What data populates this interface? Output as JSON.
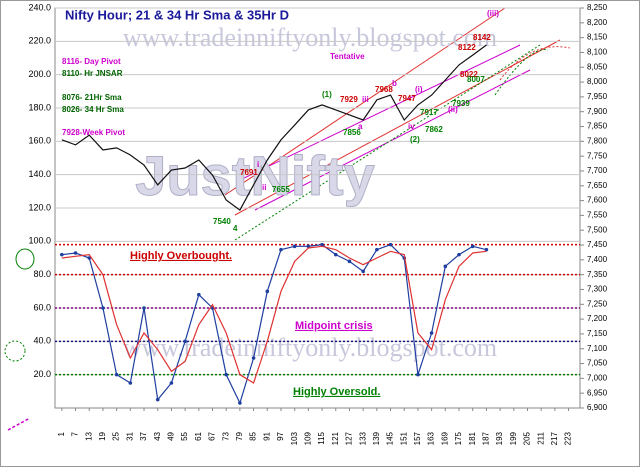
{
  "chart_data": {
    "type": "line",
    "title": "Nifty Hour; 21 & 34 Hr Sma & 35Hr D",
    "watermark": "JustNifty",
    "site": "www.tradeinniftyonly.blogspot.com",
    "xlim": [
      -2,
      228
    ],
    "xticks": [
      1,
      7,
      13,
      19,
      25,
      31,
      37,
      43,
      49,
      55,
      61,
      67,
      73,
      79,
      85,
      91,
      97,
      103,
      109,
      115,
      121,
      127,
      133,
      139,
      145,
      151,
      157,
      163,
      169,
      175,
      181,
      187,
      193,
      199,
      205,
      211,
      217,
      223
    ],
    "ylim": [
      0,
      240
    ],
    "yticks": [
      {
        "value": 20,
        "label": "20.0"
      },
      {
        "value": 40,
        "label": "40.0"
      },
      {
        "value": 60,
        "label": "60.0"
      },
      {
        "value": 80,
        "label": "80.0"
      },
      {
        "value": 100,
        "label": "100.0"
      },
      {
        "value": 120,
        "label": "120.0"
      },
      {
        "value": 140,
        "label": "140.0"
      },
      {
        "value": 160,
        "label": "160.0"
      },
      {
        "value": 180,
        "label": "180.0"
      },
      {
        "value": 200,
        "label": "200.0"
      },
      {
        "value": 220,
        "label": "220.0"
      },
      {
        "value": 240,
        "label": "240.0"
      }
    ],
    "y2lim": [
      6900,
      8250
    ],
    "y2ticks": [
      {
        "value": 6900,
        "label": "6,900"
      },
      {
        "value": 6950,
        "label": "6,950"
      },
      {
        "value": 7000,
        "label": "7,000"
      },
      {
        "value": 7050,
        "label": "7,050"
      },
      {
        "value": 7100,
        "label": "7,100"
      },
      {
        "value": 7150,
        "label": "7,150"
      },
      {
        "value": 7200,
        "label": "7,200"
      },
      {
        "value": 7250,
        "label": "7,250"
      },
      {
        "value": 7300,
        "label": "7,300"
      },
      {
        "value": 7350,
        "label": "7,350"
      },
      {
        "value": 7400,
        "label": "7,400"
      },
      {
        "value": 7450,
        "label": "7,450"
      },
      {
        "value": 7500,
        "label": "7,500"
      },
      {
        "value": 7550,
        "label": "7,550"
      },
      {
        "value": 7600,
        "label": "7,600"
      },
      {
        "value": 7650,
        "label": "7,650"
      },
      {
        "value": 7700,
        "label": "7,700"
      },
      {
        "value": 7750,
        "label": "7,750"
      },
      {
        "value": 7800,
        "label": "7,800"
      },
      {
        "value": 7850,
        "label": "7,850"
      },
      {
        "value": 7900,
        "label": "7,900"
      },
      {
        "value": 7950,
        "label": "7,950"
      },
      {
        "value": 8000,
        "label": "8,000"
      },
      {
        "value": 8050,
        "label": "8,050"
      },
      {
        "value": 8100,
        "label": "8,100"
      },
      {
        "value": 8150,
        "label": "8,150"
      },
      {
        "value": 8200,
        "label": "8,200"
      },
      {
        "value": 8250,
        "label": "8,250"
      }
    ],
    "grid": true,
    "x": [
      1,
      7,
      13,
      19,
      25,
      31,
      37,
      43,
      49,
      55,
      61,
      67,
      73,
      79,
      85,
      91,
      97,
      103,
      109,
      115,
      121,
      127,
      133,
      139,
      145,
      151,
      157,
      163,
      169,
      175,
      181,
      187
    ],
    "series": [
      {
        "color": "#111111",
        "axis": "y2",
        "values": [
          7805,
          7788,
          7821,
          7771,
          7778,
          7754,
          7720,
          7653,
          7703,
          7710,
          7737,
          7686,
          7602,
          7568,
          7653,
          7737,
          7805,
          7855,
          7906,
          7923,
          7906,
          7889,
          7872,
          7940,
          7956,
          7872,
          7923,
          7956,
          8007,
          8058,
          8091,
          8125
        ]
      },
      {
        "color": "#1f3fa0",
        "values": [
          92,
          93,
          90,
          60,
          20,
          15,
          60,
          5,
          15,
          40,
          68,
          60,
          20,
          3,
          30,
          70,
          95,
          97,
          97,
          98,
          92,
          88,
          82,
          95,
          98,
          90,
          20,
          45,
          85,
          92,
          97,
          95
        ]
      },
      {
        "color": "#e03030",
        "values": [
          90,
          91,
          92,
          80,
          50,
          30,
          45,
          35,
          22,
          28,
          50,
          62,
          45,
          20,
          15,
          40,
          70,
          88,
          96,
          97,
          95,
          90,
          86,
          90,
          94,
          92,
          45,
          35,
          65,
          85,
          93,
          94
        ]
      }
    ],
    "hlines": [
      {
        "value": 98,
        "color": "#cc0000"
      },
      {
        "value": 80,
        "color": "#cc0000"
      },
      {
        "value": 60,
        "color": "#800080"
      },
      {
        "value": 40,
        "color": "#1a1a80"
      },
      {
        "value": 20,
        "color": "#008000"
      }
    ],
    "annotations": [
      {
        "text": "8116- Day Pivot",
        "color": "#cc00cc"
      },
      {
        "text": "8110- Hr JNSAR",
        "color": "#006400"
      },
      {
        "text": "8076- 21Hr Sma",
        "color": "#006400"
      },
      {
        "text": "8026- 34 Hr Sma",
        "color": "#006400"
      },
      {
        "text": "7928-Week Pivot",
        "color": "#cc00cc"
      },
      {
        "text": "Tentative",
        "color": "#cc00cc"
      },
      {
        "text": "Highly Overbought.",
        "color": "#cc0000"
      },
      {
        "text": "Midpoint crisis",
        "color": "#cc00cc"
      },
      {
        "text": "Highly Oversold.",
        "color": "#008000"
      },
      {
        "text": "(1)",
        "color": "#008000"
      },
      {
        "text": "7929",
        "color": "#cc0000"
      },
      {
        "text": "iii",
        "color": "#cc00cc"
      },
      {
        "text": "b",
        "color": "#cc00cc"
      },
      {
        "text": "7968",
        "color": "#cc0000"
      },
      {
        "text": "a",
        "color": "#cc00cc"
      },
      {
        "text": "7856",
        "color": "#008000"
      },
      {
        "text": "(i)",
        "color": "#cc00cc"
      },
      {
        "text": "7947",
        "color": "#cc0000"
      },
      {
        "text": "(ii)",
        "color": "#cc00cc"
      },
      {
        "text": "iv",
        "color": "#cc00cc"
      },
      {
        "text": "(2)",
        "color": "#008000"
      },
      {
        "text": "7862",
        "color": "#008000"
      },
      {
        "text": "7917",
        "color": "#008000"
      },
      {
        "text": "7939",
        "color": "#008000"
      },
      {
        "text": "8022",
        "color": "#cc0000"
      },
      {
        "text": "8007",
        "color": "#008000"
      },
      {
        "text": "8122",
        "color": "#cc0000"
      },
      {
        "text": "8142",
        "color": "#cc0000"
      },
      {
        "text": "(iii)",
        "color": "#cc00cc"
      },
      {
        "text": "7691",
        "color": "#cc0000"
      },
      {
        "text": "i",
        "color": "#cc00cc"
      },
      {
        "text": "ii",
        "color": "#cc00cc"
      },
      {
        "text": "7655",
        "color": "#008000"
      },
      {
        "text": "7540",
        "color": "#008000"
      },
      {
        "text": "4",
        "color": "#008000"
      }
    ]
  }
}
